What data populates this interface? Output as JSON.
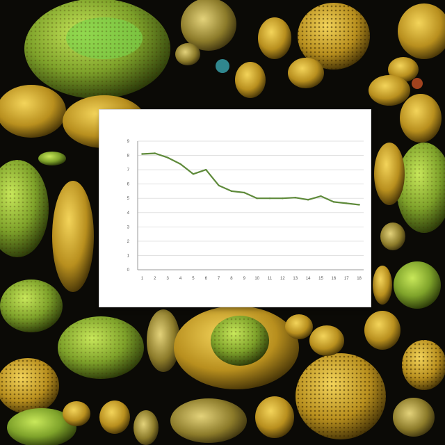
{
  "page": {
    "background_color": "#0b0a06"
  },
  "chart_data": {
    "type": "line",
    "title": "",
    "xlabel": "",
    "ylabel": "",
    "x": [
      1,
      2,
      3,
      4,
      5,
      6,
      7,
      8,
      9,
      10,
      11,
      12,
      13,
      14,
      15,
      16,
      17,
      18
    ],
    "xtick_labels": [
      "1",
      "2",
      "3",
      "4",
      "5",
      "6",
      "7",
      "8",
      "9",
      "10",
      "11",
      "12",
      "13",
      "14",
      "15",
      "16",
      "17",
      "18"
    ],
    "ylim": [
      0,
      9
    ],
    "yticks": [
      0,
      1,
      2,
      3,
      4,
      5,
      6,
      7,
      8,
      9
    ],
    "series": [
      {
        "color": "#5e8a3a",
        "values": [
          8.1,
          8.15,
          7.85,
          7.4,
          6.7,
          7.0,
          5.9,
          5.5,
          5.4,
          5.0,
          5.0,
          5.0,
          5.05,
          4.9,
          5.15,
          4.75,
          4.65,
          4.55
        ]
      }
    ],
    "grid": true,
    "legend": "none"
  }
}
